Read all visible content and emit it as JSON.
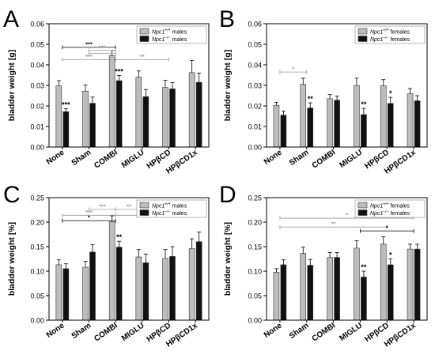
{
  "chart_data": [
    {
      "type": "bar",
      "panel_label": "A",
      "categories": [
        "None",
        "Sham",
        "COMBI",
        "MIGLU",
        "HPβCD",
        "HPβCD1x"
      ],
      "ylabel": "bladder weight [g]",
      "ylim": [
        0,
        0.06
      ],
      "yticks": [
        "0.00",
        "0.01",
        "0.02",
        "0.03",
        "0.04",
        "0.05",
        "0.06"
      ],
      "legend": {
        "position": "top-right",
        "entries": [
          {
            "gene": "Npc1",
            "sup": "+/+",
            "suffix": " males"
          },
          {
            "gene": "Npc1",
            "sup": "−/−",
            "suffix": " males"
          }
        ]
      },
      "series": [
        {
          "values": [
            0.0298,
            0.0272,
            0.0445,
            0.034,
            0.029,
            0.0362
          ],
          "errors": [
            0.0025,
            0.003,
            0.0025,
            0.003,
            0.0035,
            0.006
          ]
        },
        {
          "values": [
            0.0172,
            0.0213,
            0.0323,
            0.0245,
            0.0283,
            0.0315
          ],
          "errors": [
            0.0015,
            0.003,
            0.0025,
            0.0035,
            0.003,
            0.0045
          ]
        }
      ],
      "bar_marks": [
        {
          "cat": 0,
          "series": 1,
          "text": "***"
        },
        {
          "cat": 2,
          "series": 1,
          "text": "***"
        }
      ],
      "brackets": [
        {
          "from": 0,
          "to": 2,
          "level": 0.0485,
          "text": "***",
          "color": "#000000"
        },
        {
          "from": 1,
          "to": 2,
          "level": 0.047,
          "text": "***",
          "color": "#9a9a9a"
        },
        {
          "from": 1,
          "to": 2,
          "level": 0.0455,
          "text": "",
          "color": "#9a9a9a"
        },
        {
          "from": 0,
          "to": 2,
          "level": 0.0425,
          "text": "***",
          "color": "#9a9a9a"
        },
        {
          "from": 2,
          "to": 4,
          "level": 0.0425,
          "text": "**",
          "color": "#9a9a9a"
        }
      ]
    },
    {
      "type": "bar",
      "panel_label": "B",
      "categories": [
        "None",
        "Sham",
        "COMBI",
        "MIGLU",
        "HPβCD",
        "HPβCD1x"
      ],
      "ylabel": "bladder weight [g]",
      "ylim": [
        0,
        0.06
      ],
      "yticks": [
        "0.00",
        "0.01",
        "0.02",
        "0.03",
        "0.04",
        "0.05",
        "0.06"
      ],
      "legend": {
        "position": "top-right",
        "entries": [
          {
            "gene": "Npc1",
            "sup": "+/+",
            "suffix": " females"
          },
          {
            "gene": "Npc1",
            "sup": "−/−",
            "suffix": " females"
          }
        ]
      },
      "series": [
        {
          "values": [
            0.0203,
            0.0305,
            0.0235,
            0.03,
            0.0298,
            0.026
          ],
          "errors": [
            0.0015,
            0.003,
            0.002,
            0.0035,
            0.003,
            0.0025
          ]
        },
        {
          "values": [
            0.0155,
            0.019,
            0.0228,
            0.0158,
            0.0212,
            0.0225
          ],
          "errors": [
            0.002,
            0.0025,
            0.002,
            0.003,
            0.003,
            0.0025
          ]
        }
      ],
      "bar_marks": [
        {
          "cat": 1,
          "series": 1,
          "text": "**"
        },
        {
          "cat": 3,
          "series": 1,
          "text": "**"
        },
        {
          "cat": 4,
          "series": 1,
          "text": "*"
        }
      ],
      "brackets": [
        {
          "from": 0,
          "to": 1,
          "level": 0.0365,
          "text": "*",
          "color": "#9a9a9a"
        }
      ]
    },
    {
      "type": "bar",
      "panel_label": "C",
      "categories": [
        "None",
        "Sham",
        "COMBI",
        "MIGLU",
        "HPβCD",
        "HPβCD1x"
      ],
      "ylabel": "bladder weight [%]",
      "ylim": [
        0,
        0.25
      ],
      "yticks": [
        "0.00",
        "0.05",
        "0.10",
        "0.15",
        "0.20",
        "0.25"
      ],
      "legend": {
        "position": "top-right",
        "entries": [
          {
            "gene": "Npc1",
            "sup": "+/+",
            "suffix": " males"
          },
          {
            "gene": "Npc1",
            "sup": "−/−",
            "suffix": " males"
          }
        ]
      },
      "series": [
        {
          "values": [
            0.113,
            0.108,
            0.201,
            0.129,
            0.126,
            0.146
          ],
          "errors": [
            0.01,
            0.012,
            0.012,
            0.015,
            0.018,
            0.02
          ]
        },
        {
          "values": [
            0.105,
            0.139,
            0.149,
            0.117,
            0.13,
            0.16
          ],
          "errors": [
            0.01,
            0.015,
            0.012,
            0.018,
            0.02,
            0.02
          ]
        }
      ],
      "bar_marks": [
        {
          "cat": 2,
          "series": 1,
          "text": "**"
        }
      ],
      "brackets": [
        {
          "from": 1,
          "to": 2,
          "level": 0.226,
          "text": "***",
          "color": "#9a9a9a"
        },
        {
          "from": 2,
          "to": 3,
          "level": 0.226,
          "text": "**",
          "color": "#9a9a9a"
        },
        {
          "from": 0,
          "to": 2,
          "level": 0.214,
          "text": "***",
          "color": "#9a9a9a"
        },
        {
          "from": 2,
          "to": 5,
          "level": 0.214,
          "text": "**",
          "color": "#9a9a9a"
        },
        {
          "from": 0,
          "to": 2,
          "level": 0.203,
          "text": "*",
          "color": "#000000"
        }
      ]
    },
    {
      "type": "bar",
      "panel_label": "D",
      "categories": [
        "None",
        "Sham",
        "COMBI",
        "MIGLU",
        "HPβCD",
        "HPβCD1x"
      ],
      "ylabel": "bladder weight [%]",
      "ylim": [
        0,
        0.25
      ],
      "yticks": [
        "0.00",
        "0.05",
        "0.10",
        "0.15",
        "0.20",
        "0.25"
      ],
      "legend": {
        "position": "top-right",
        "entries": [
          {
            "gene": "Npc1",
            "sup": "+/+",
            "suffix": " females"
          },
          {
            "gene": "Npc1",
            "sup": "−/−",
            "suffix": " females"
          }
        ]
      },
      "series": [
        {
          "values": [
            0.098,
            0.136,
            0.128,
            0.147,
            0.155,
            0.145
          ],
          "errors": [
            0.007,
            0.013,
            0.01,
            0.015,
            0.015,
            0.01
          ]
        },
        {
          "values": [
            0.113,
            0.112,
            0.128,
            0.088,
            0.113,
            0.145
          ],
          "errors": [
            0.01,
            0.012,
            0.01,
            0.012,
            0.012,
            0.01
          ]
        }
      ],
      "bar_marks": [
        {
          "cat": 3,
          "series": 1,
          "text": "**"
        },
        {
          "cat": 4,
          "series": 1,
          "text": "*"
        }
      ],
      "brackets": [
        {
          "from": 0,
          "to": 5,
          "level": 0.208,
          "text": "*",
          "color": "#9a9a9a"
        },
        {
          "from": 0,
          "to": 4,
          "level": 0.19,
          "text": "**",
          "color": "#9a9a9a"
        },
        {
          "from": 3,
          "to": 5,
          "level": 0.182,
          "text": "*",
          "color": "#000000"
        }
      ]
    }
  ],
  "colors": {
    "wildtype_fill": "#bdbdbd",
    "mutant_fill": "#111111",
    "bar_stroke": "#333333",
    "bracket_black": "#000000",
    "bracket_grey": "#9a9a9a"
  }
}
